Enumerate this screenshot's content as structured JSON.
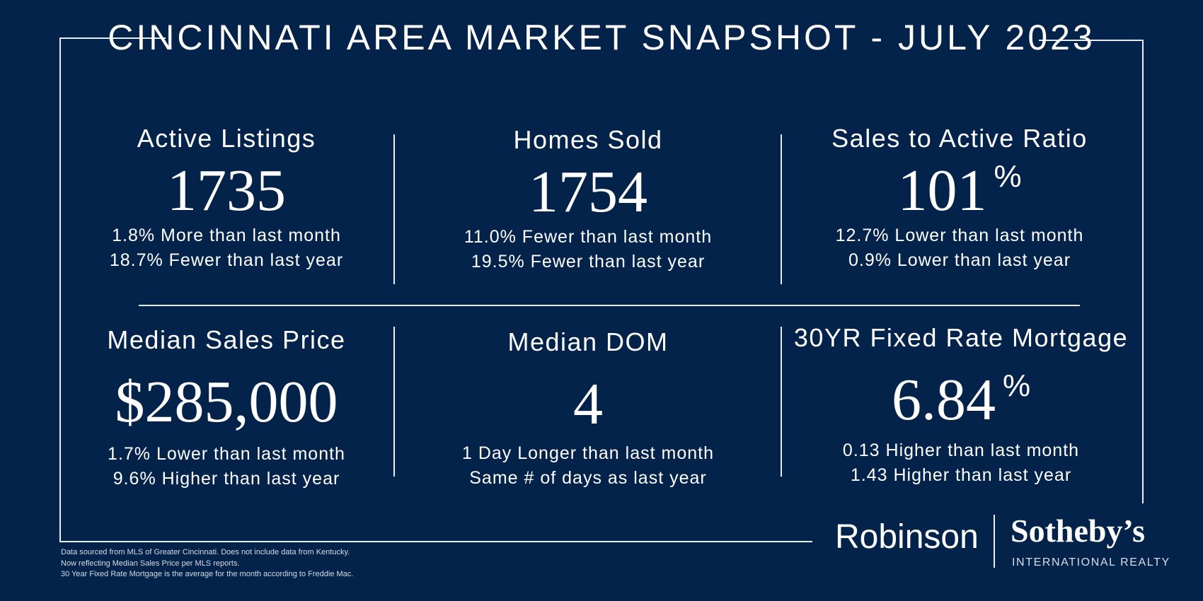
{
  "title": "CINCINNATI AREA MARKET SNAPSHOT - JULY 2023",
  "metrics": [
    {
      "label": "Active Listings",
      "value": "1735",
      "unit": "",
      "change_month": "1.8% More than last month",
      "change_year": "18.7% Fewer than last year"
    },
    {
      "label": "Homes Sold",
      "value": "1754",
      "unit": "",
      "change_month": "11.0% Fewer than last month",
      "change_year": "19.5% Fewer than last year"
    },
    {
      "label": "Sales to Active Ratio",
      "value": "101",
      "unit": "%",
      "change_month": "12.7% Lower than last month",
      "change_year": "0.9% Lower than last year"
    },
    {
      "label": "Median Sales Price",
      "value": "$285,000",
      "unit": "",
      "change_month": "1.7% Lower than last month",
      "change_year": "9.6% Higher than last year"
    },
    {
      "label": "Median DOM",
      "value": "4",
      "unit": "",
      "change_month": "1 Day Longer than last month",
      "change_year": "Same # of days as last year"
    },
    {
      "label": "30YR Fixed Rate Mortgage",
      "value": "6.84",
      "unit": "%",
      "change_month": "0.13 Higher than last month",
      "change_year": "1.43 Higher than last year"
    }
  ],
  "footer": {
    "line1": "Data sourced from MLS of Greater Cincinnati.  Does not include data from Kentucky.",
    "line2": "Now reflecting Median Sales Price per MLS reports.",
    "line3": "30 Year Fixed Rate Mortgage is the average for the month according to Freddie Mac."
  },
  "brand": {
    "robinson": "Robinson",
    "sothebys": "Sotheby’s",
    "international": "INTERNATIONAL REALTY"
  },
  "colors": {
    "background": "#04234a",
    "text": "#ffffff",
    "lines": "#e8edf3"
  }
}
